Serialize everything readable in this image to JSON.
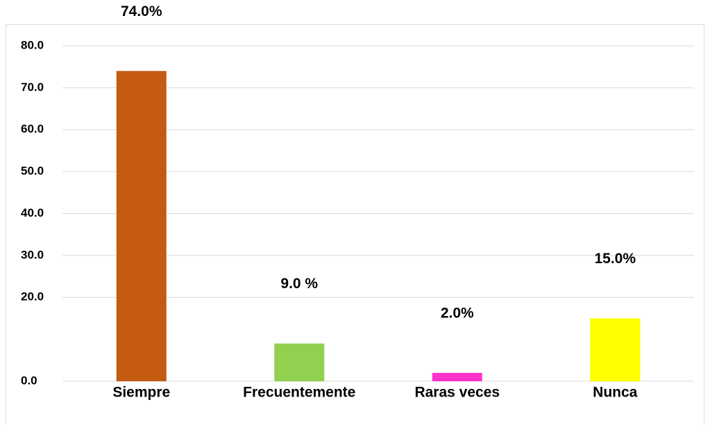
{
  "chart_data": {
    "type": "bar",
    "categories": [
      "Siempre",
      "Frecuentemente",
      "Raras veces",
      "Nunca"
    ],
    "values": [
      74,
      9,
      2,
      15
    ],
    "value_labels": [
      "74.0%",
      "9.0 %",
      "2.0%",
      "15.0%"
    ],
    "colors": [
      "#c55a11",
      "#92d050",
      "#ff33cc",
      "#ffff00"
    ],
    "ylim": [
      0,
      80
    ],
    "yticks": [
      {
        "value": 0,
        "label": "0.0"
      },
      {
        "value": 20,
        "label": "20.0"
      },
      {
        "value": 30,
        "label": "30.0"
      },
      {
        "value": 40,
        "label": "40.0"
      },
      {
        "value": 50,
        "label": "50.0"
      },
      {
        "value": 60,
        "label": "60.0"
      },
      {
        "value": 70,
        "label": "70.0"
      },
      {
        "value": 80,
        "label": "80.0"
      }
    ],
    "grid": true
  }
}
